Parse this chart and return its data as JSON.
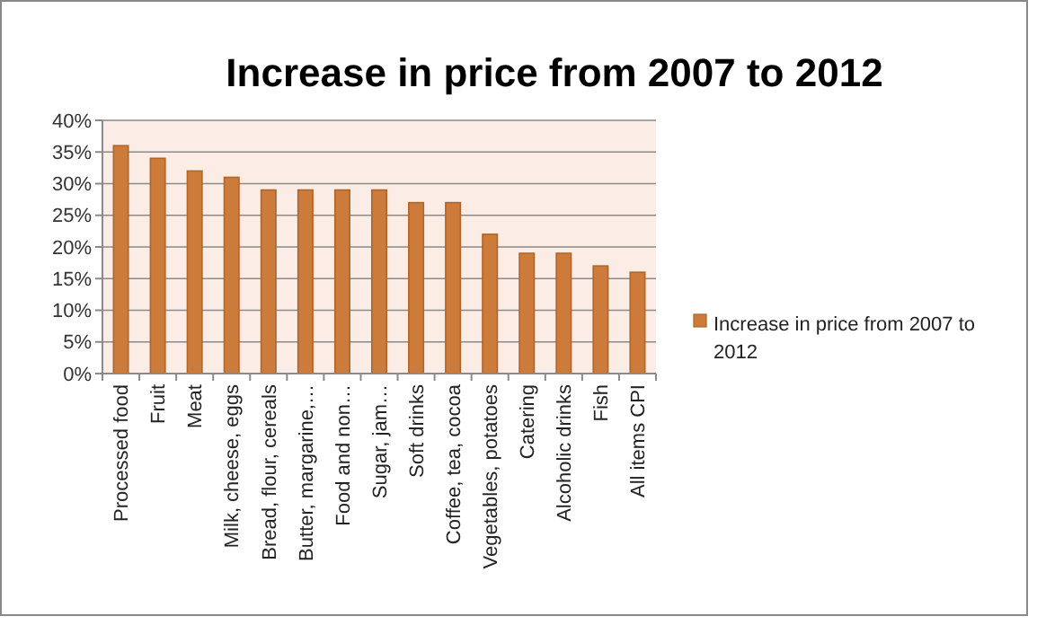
{
  "chart_data": {
    "type": "bar",
    "title": "Increase in price from 2007 to 2012",
    "categories": [
      "Processed food",
      "Fruit",
      "Meat",
      "Milk, cheese, eggs",
      "Bread, flour, cereals",
      "Butter, margarine,…",
      "Food and non…",
      "Sugar, jam…",
      "Soft drinks",
      "Coffee, tea, cocoa",
      "Vegetables, potatoes",
      "Catering",
      "Alcoholic drinks",
      "Fish",
      "All items CPI"
    ],
    "series": [
      {
        "name": "Increase in price from 2007 to 2012",
        "color": "#cd7b3a",
        "values": [
          36,
          34,
          32,
          31,
          29,
          29,
          29,
          29,
          27,
          27,
          22,
          19,
          19,
          17,
          16
        ]
      }
    ],
    "ylim": [
      0,
      40
    ],
    "yticks": [
      {
        "value": 0,
        "label": "0%"
      },
      {
        "value": 5,
        "label": "5%"
      },
      {
        "value": 10,
        "label": "10%"
      },
      {
        "value": 15,
        "label": "15%"
      },
      {
        "value": 20,
        "label": "20%"
      },
      {
        "value": 25,
        "label": "25%"
      },
      {
        "value": 30,
        "label": "30%"
      },
      {
        "value": 35,
        "label": "35%"
      },
      {
        "value": 40,
        "label": "40%"
      }
    ],
    "grid": "y",
    "legend": "right"
  }
}
